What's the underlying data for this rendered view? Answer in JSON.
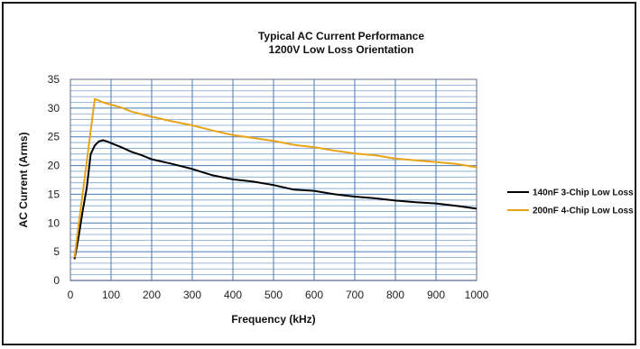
{
  "chart_data": {
    "type": "line",
    "title": "Typical AC Current Performance",
    "subtitle": "1200V Low Loss Orientation",
    "xlabel": "Frequency (kHz)",
    "ylabel": "AC Current (Arms)",
    "xlim": [
      0,
      1000
    ],
    "ylim": [
      0,
      35
    ],
    "xticks": [
      "0",
      "100",
      "200",
      "300",
      "400",
      "500",
      "600",
      "700",
      "800",
      "900",
      "1000"
    ],
    "yticks": [
      "0",
      "5",
      "10",
      "15",
      "20",
      "25",
      "30",
      "35"
    ],
    "grid": true,
    "legend_position": "right",
    "series": [
      {
        "name": "140nF 3-Chip Low Loss",
        "color": "#000000",
        "x": [
          10,
          20,
          30,
          40,
          50,
          60,
          70,
          80,
          90,
          100,
          125,
          150,
          175,
          200,
          250,
          300,
          350,
          400,
          450,
          500,
          550,
          600,
          650,
          700,
          750,
          800,
          850,
          900,
          950,
          1000
        ],
        "y": [
          3.7,
          7.5,
          12.0,
          16.0,
          22.0,
          23.5,
          24.2,
          24.4,
          24.2,
          23.9,
          23.2,
          22.4,
          21.8,
          21.1,
          20.3,
          19.4,
          18.3,
          17.6,
          17.2,
          16.6,
          15.8,
          15.6,
          15.0,
          14.6,
          14.3,
          13.9,
          13.6,
          13.4,
          13.0,
          12.5
        ]
      },
      {
        "name": "200nF 4-Chip Low Loss",
        "color": "#E8A317",
        "x": [
          10,
          30,
          60,
          80,
          100,
          125,
          150,
          200,
          250,
          300,
          350,
          400,
          450,
          500,
          550,
          600,
          650,
          700,
          750,
          800,
          850,
          900,
          950,
          1000
        ],
        "y": [
          4.0,
          15.0,
          31.6,
          31.0,
          30.6,
          30.1,
          29.4,
          28.5,
          27.7,
          27.0,
          26.1,
          25.3,
          24.8,
          24.3,
          23.6,
          23.2,
          22.6,
          22.1,
          21.8,
          21.2,
          20.9,
          20.6,
          20.3,
          19.7
        ]
      }
    ]
  }
}
